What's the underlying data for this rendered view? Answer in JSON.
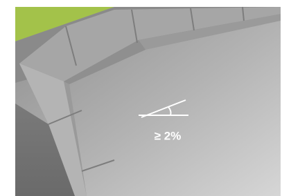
{
  "slope_label": "≥ 2%"
}
